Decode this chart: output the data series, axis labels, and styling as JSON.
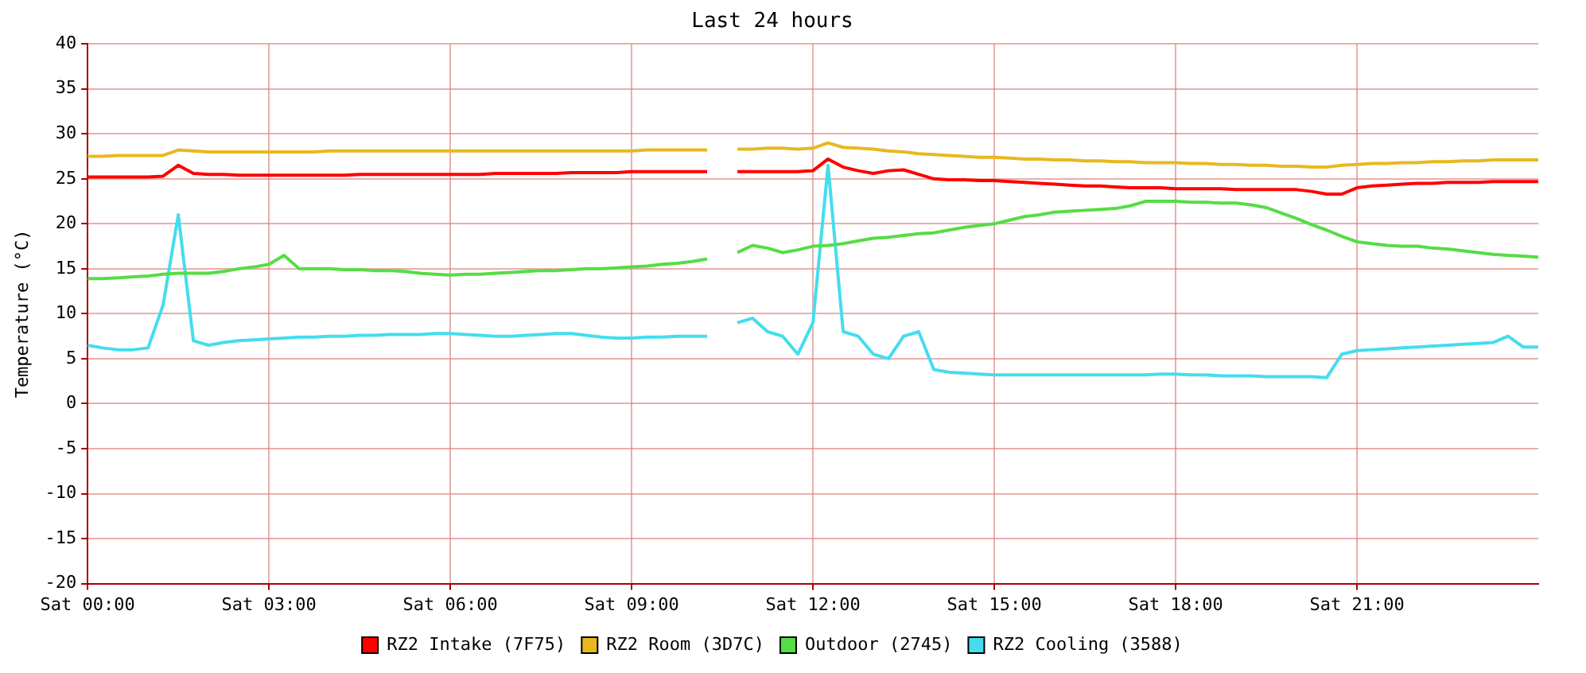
{
  "chart_data": {
    "type": "line",
    "title": "Last 24 hours",
    "ylabel": "Temperature (°C)",
    "categories": [
      "Sat 00:00",
      null,
      null,
      null,
      null,
      null,
      null,
      null,
      null,
      null,
      null,
      null,
      "Sat 03:00",
      null,
      null,
      null,
      null,
      null,
      null,
      null,
      null,
      null,
      null,
      null,
      "Sat 06:00",
      null,
      null,
      null,
      null,
      null,
      null,
      null,
      null,
      null,
      null,
      null,
      "Sat 09:00",
      null,
      null,
      null,
      null,
      null,
      null,
      null,
      null,
      null,
      null,
      null,
      "Sat 12:00",
      null,
      null,
      null,
      null,
      null,
      null,
      null,
      null,
      null,
      null,
      null,
      "Sat 15:00",
      null,
      null,
      null,
      null,
      null,
      null,
      null,
      null,
      null,
      null,
      null,
      "Sat 18:00",
      null,
      null,
      null,
      null,
      null,
      null,
      null,
      null,
      null,
      null,
      null,
      "Sat 21:00",
      null,
      null,
      null,
      null,
      null,
      null,
      null,
      null,
      null,
      null,
      null,
      null
    ],
    "ylim": [
      -20,
      40
    ],
    "yticks": [
      -20,
      -15,
      -10,
      -5,
      0,
      5,
      10,
      15,
      20,
      25,
      30,
      35,
      40
    ],
    "grid": true,
    "legend": "bottom",
    "marker": "none",
    "line_style": "solid",
    "series": [
      {
        "name": "RZ2 Intake (7F75)",
        "color": "#ff0000",
        "values": [
          25.2,
          25.2,
          25.2,
          25.2,
          25.2,
          25.3,
          26.5,
          25.6,
          25.5,
          25.5,
          25.4,
          25.4,
          25.4,
          25.4,
          25.4,
          25.4,
          25.4,
          25.4,
          25.5,
          25.5,
          25.5,
          25.5,
          25.5,
          25.5,
          25.5,
          25.5,
          25.5,
          25.6,
          25.6,
          25.6,
          25.6,
          25.6,
          25.7,
          25.7,
          25.7,
          25.7,
          25.8,
          25.8,
          25.8,
          25.8,
          25.8,
          25.8,
          null,
          25.8,
          25.8,
          25.8,
          25.8,
          25.8,
          25.9,
          27.2,
          26.3,
          25.9,
          25.6,
          25.9,
          26,
          25.5,
          25,
          24.9,
          24.9,
          24.8,
          24.8,
          24.7,
          24.6,
          24.5,
          24.4,
          24.3,
          24.2,
          24.2,
          24.1,
          24,
          24,
          24,
          23.9,
          23.9,
          23.9,
          23.9,
          23.8,
          23.8,
          23.8,
          23.8,
          23.8,
          23.6,
          23.3,
          23.3,
          24,
          24.2,
          24.3,
          24.4,
          24.5,
          24.5,
          24.6,
          24.6,
          24.6,
          24.7,
          24.7,
          24.7,
          24.7
        ]
      },
      {
        "name": "RZ2 Room (3D7C)",
        "color": "#e8b820",
        "values": [
          27.5,
          27.5,
          27.6,
          27.6,
          27.6,
          27.6,
          28.2,
          28.1,
          28,
          28,
          28,
          28,
          28,
          28,
          28,
          28,
          28.1,
          28.1,
          28.1,
          28.1,
          28.1,
          28.1,
          28.1,
          28.1,
          28.1,
          28.1,
          28.1,
          28.1,
          28.1,
          28.1,
          28.1,
          28.1,
          28.1,
          28.1,
          28.1,
          28.1,
          28.1,
          28.2,
          28.2,
          28.2,
          28.2,
          28.2,
          null,
          28.3,
          28.3,
          28.4,
          28.4,
          28.3,
          28.4,
          29,
          28.5,
          28.4,
          28.3,
          28.1,
          28,
          27.8,
          27.7,
          27.6,
          27.5,
          27.4,
          27.4,
          27.3,
          27.2,
          27.2,
          27.1,
          27.1,
          27,
          27,
          26.9,
          26.9,
          26.8,
          26.8,
          26.8,
          26.7,
          26.7,
          26.6,
          26.6,
          26.5,
          26.5,
          26.4,
          26.4,
          26.3,
          26.3,
          26.5,
          26.6,
          26.7,
          26.7,
          26.8,
          26.8,
          26.9,
          26.9,
          27,
          27,
          27.1,
          27.1,
          27.1,
          27.1
        ]
      },
      {
        "name": "Outdoor (2745)",
        "color": "#55dd44",
        "values": [
          13.9,
          13.9,
          14,
          14.1,
          14.2,
          14.4,
          14.5,
          14.5,
          14.5,
          14.7,
          15,
          15.2,
          15.5,
          16.5,
          15,
          15,
          15,
          14.9,
          14.9,
          14.8,
          14.8,
          14.7,
          14.5,
          14.4,
          14.3,
          14.4,
          14.4,
          14.5,
          14.6,
          14.7,
          14.8,
          14.8,
          14.9,
          15,
          15,
          15.1,
          15.2,
          15.3,
          15.5,
          15.6,
          15.8,
          16.1,
          null,
          16.8,
          17.6,
          17.3,
          16.8,
          17.1,
          17.5,
          17.6,
          17.8,
          18.1,
          18.4,
          18.5,
          18.7,
          18.9,
          19,
          19.3,
          19.6,
          19.8,
          20,
          20.4,
          20.8,
          21,
          21.3,
          21.4,
          21.5,
          21.6,
          21.7,
          22,
          22.5,
          22.5,
          22.5,
          22.4,
          22.4,
          22.3,
          22.3,
          22.1,
          21.8,
          21.2,
          20.6,
          19.9,
          19.3,
          18.6,
          18,
          17.8,
          17.6,
          17.5,
          17.5,
          17.3,
          17.2,
          17,
          16.8,
          16.6,
          16.5,
          16.4,
          16.3
        ]
      },
      {
        "name": "RZ2 Cooling (3588)",
        "color": "#44ddee",
        "values": [
          6.5,
          6.2,
          6,
          6,
          6.2,
          11,
          21,
          7,
          6.5,
          6.8,
          7,
          7.1,
          7.2,
          7.3,
          7.4,
          7.4,
          7.5,
          7.5,
          7.6,
          7.6,
          7.7,
          7.7,
          7.7,
          7.8,
          7.8,
          7.7,
          7.6,
          7.5,
          7.5,
          7.6,
          7.7,
          7.8,
          7.8,
          7.6,
          7.4,
          7.3,
          7.3,
          7.4,
          7.4,
          7.5,
          7.5,
          7.5,
          null,
          9,
          9.5,
          8,
          7.5,
          5.5,
          9,
          26.5,
          8,
          7.5,
          5.5,
          5,
          7.5,
          8,
          3.8,
          3.5,
          3.4,
          3.3,
          3.2,
          3.2,
          3.2,
          3.2,
          3.2,
          3.2,
          3.2,
          3.2,
          3.2,
          3.2,
          3.2,
          3.3,
          3.3,
          3.2,
          3.2,
          3.1,
          3.1,
          3.1,
          3,
          3,
          3,
          3,
          2.9,
          5.5,
          5.9,
          6,
          6.1,
          6.2,
          6.3,
          6.4,
          6.5,
          6.6,
          6.7,
          6.8,
          7.5,
          6.3,
          6.3
        ]
      }
    ]
  }
}
